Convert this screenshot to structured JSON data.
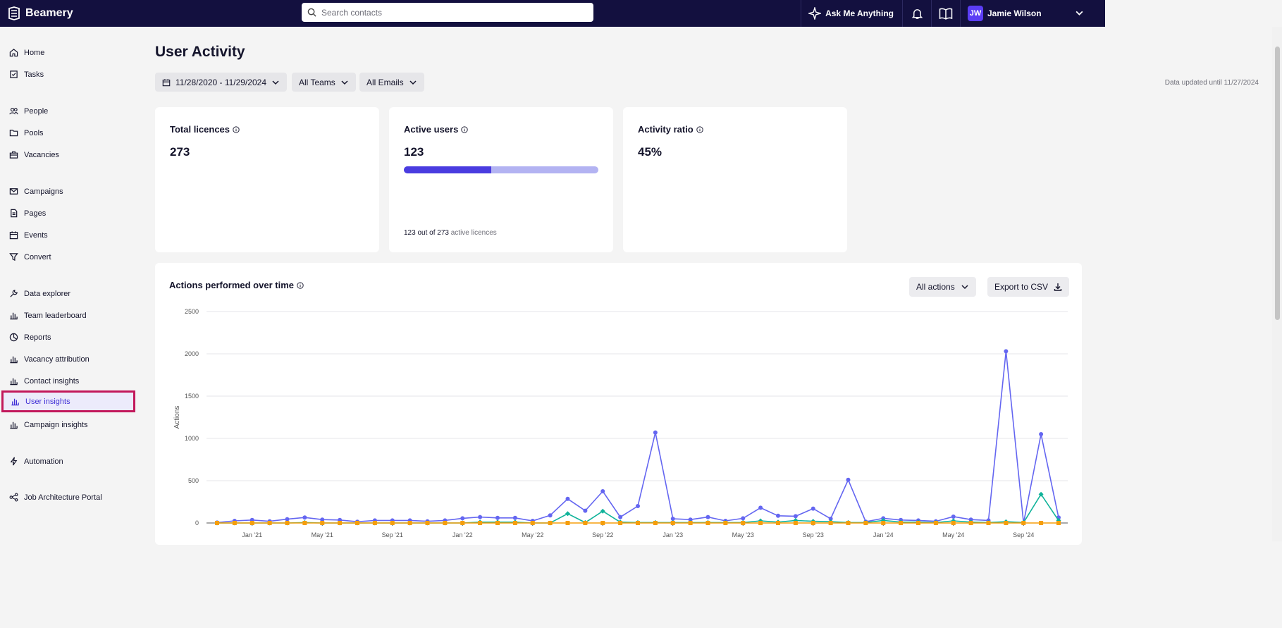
{
  "app": {
    "brand": "Beamery"
  },
  "topbar": {
    "search_placeholder": "Search contacts",
    "ask_label": "Ask Me Anything",
    "user_initials": "JW",
    "user_name": "Jamie Wilson"
  },
  "sidebar": {
    "items": [
      {
        "label": "Home",
        "icon": "home-icon"
      },
      {
        "label": "Tasks",
        "icon": "tasks-icon"
      },
      {
        "label": "People",
        "icon": "people-icon"
      },
      {
        "label": "Pools",
        "icon": "folder-icon"
      },
      {
        "label": "Vacancies",
        "icon": "briefcase-icon"
      },
      {
        "label": "Campaigns",
        "icon": "mail-icon"
      },
      {
        "label": "Pages",
        "icon": "page-icon"
      },
      {
        "label": "Events",
        "icon": "calendar-icon"
      },
      {
        "label": "Convert",
        "icon": "funnel-icon"
      },
      {
        "label": "Data explorer",
        "icon": "wrench-icon"
      },
      {
        "label": "Team leaderboard",
        "icon": "bar-chart-icon"
      },
      {
        "label": "Reports",
        "icon": "pie-chart-icon"
      },
      {
        "label": "Vacancy attribution",
        "icon": "bar-chart-icon"
      },
      {
        "label": "Contact insights",
        "icon": "bar-chart-icon"
      },
      {
        "label": "User insights",
        "icon": "bar-chart-icon",
        "active": true
      },
      {
        "label": "Campaign insights",
        "icon": "bar-chart-icon"
      },
      {
        "label": "Automation",
        "icon": "bolt-icon"
      },
      {
        "label": "Job Architecture Portal",
        "icon": "hierarchy-icon"
      }
    ]
  },
  "page": {
    "title": "User Activity",
    "filters": {
      "date_range": "11/28/2020 - 11/29/2024",
      "teams": "All Teams",
      "emails": "All Emails"
    },
    "updated": "Data updated until 11/27/2024"
  },
  "cards": {
    "total_licences": {
      "title": "Total licences",
      "value": "273"
    },
    "active_users": {
      "title": "Active users",
      "value": "123",
      "progress": 0.45,
      "footer_count": "123 out of 273",
      "footer_label": "active licences"
    },
    "activity_ratio": {
      "title": "Activity ratio",
      "value": "45%"
    }
  },
  "chart_panel": {
    "title": "Actions performed over time",
    "actions_filter": "All actions",
    "export_label": "Export to CSV"
  },
  "colors": {
    "brand_dark": "#13103f",
    "accent": "#4a3ce0",
    "series_blue": "#6466f1",
    "series_green": "#10b39a",
    "series_orange": "#f59e0b",
    "active_outline": "#c2185b"
  },
  "chart_data": {
    "type": "line",
    "ylabel": "Actions",
    "ylim": [
      0,
      2500
    ],
    "yticks": [
      "0",
      "500",
      "1000",
      "1500",
      "2000",
      "2500"
    ],
    "xticks": [
      "Jan '21",
      "May '21",
      "Sep '21",
      "Jan '22",
      "May '22",
      "Sep '22",
      "Jan '23",
      "May '23",
      "Sep '23",
      "Jan '24",
      "May '24",
      "Sep '24"
    ],
    "grid": true,
    "series": [
      {
        "color": "#6466f1",
        "marker": "circle",
        "values": [
          5,
          25,
          35,
          20,
          45,
          65,
          40,
          35,
          15,
          30,
          30,
          30,
          20,
          30,
          55,
          70,
          60,
          60,
          25,
          90,
          285,
          145,
          375,
          70,
          200,
          1070,
          50,
          40,
          70,
          25,
          55,
          180,
          85,
          80,
          170,
          50,
          510,
          15,
          55,
          35,
          30,
          20,
          75,
          40,
          30,
          2030,
          0,
          1050,
          65
        ]
      },
      {
        "color": "#10b39a",
        "marker": "diamond",
        "values": [
          0,
          0,
          0,
          0,
          0,
          5,
          0,
          0,
          0,
          0,
          0,
          0,
          0,
          0,
          0,
          10,
          10,
          10,
          0,
          0,
          110,
          5,
          140,
          10,
          5,
          5,
          5,
          5,
          5,
          5,
          5,
          25,
          10,
          30,
          20,
          15,
          5,
          5,
          30,
          10,
          10,
          5,
          25,
          10,
          5,
          15,
          5,
          340,
          30
        ]
      },
      {
        "color": "#f59e0b",
        "marker": "square",
        "values": [
          0,
          0,
          0,
          0,
          0,
          0,
          0,
          0,
          0,
          0,
          0,
          0,
          0,
          0,
          0,
          0,
          0,
          0,
          0,
          0,
          0,
          0,
          0,
          0,
          0,
          0,
          0,
          0,
          0,
          0,
          0,
          0,
          0,
          0,
          0,
          0,
          0,
          0,
          0,
          0,
          0,
          0,
          0,
          0,
          0,
          0,
          0,
          0,
          0
        ]
      }
    ]
  }
}
